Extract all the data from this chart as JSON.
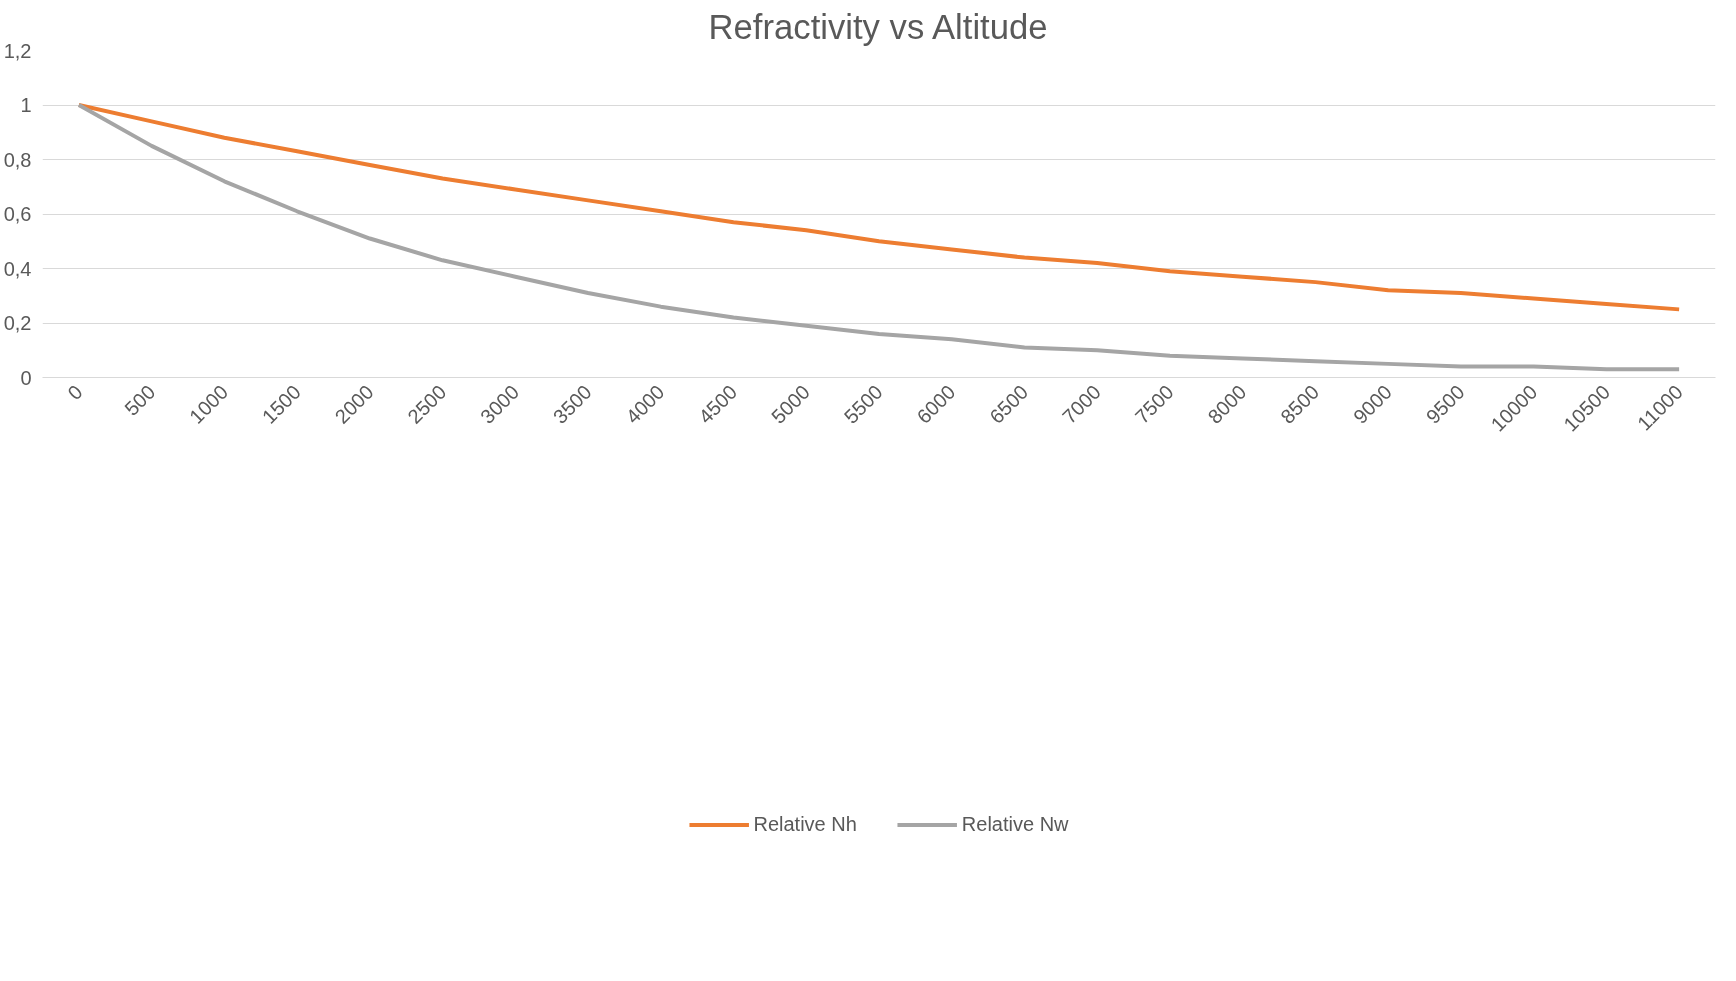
{
  "chart_data": {
    "type": "line",
    "title": "Refractivity vs Altitude",
    "categories": [
      "0",
      "500",
      "1000",
      "1500",
      "2000",
      "2500",
      "3000",
      "3500",
      "4000",
      "4500",
      "5000",
      "5500",
      "6000",
      "6500",
      "7000",
      "7500",
      "8000",
      "8500",
      "9000",
      "9500",
      "10000",
      "10500",
      "11000"
    ],
    "series": [
      {
        "name": "Relative Nh",
        "color": "#ed7d31",
        "values": [
          1,
          0.94,
          0.88,
          0.83,
          0.78,
          0.73,
          0.69,
          0.65,
          0.61,
          0.57,
          0.54,
          0.5,
          0.47,
          0.44,
          0.42,
          0.39,
          0.37,
          0.35,
          0.32,
          0.31,
          0.29,
          0.27,
          0.25
        ]
      },
      {
        "name": "Relative Nw",
        "color": "#a5a5a5",
        "values": [
          1,
          0.85,
          0.72,
          0.61,
          0.51,
          0.43,
          0.37,
          0.31,
          0.26,
          0.22,
          0.19,
          0.16,
          0.14,
          0.11,
          0.1,
          0.08,
          0.07,
          0.06,
          0.05,
          0.04,
          0.04,
          0.03,
          0.03
        ]
      }
    ],
    "ylim": [
      0,
      1.2
    ],
    "yticks": [
      0,
      {
        "value": 0.2,
        "label": "0,2"
      },
      {
        "value": 0.4,
        "label": "0,4"
      },
      {
        "value": 0.6,
        "label": "0,6"
      },
      {
        "value": 0.8,
        "label": "0,8"
      },
      1,
      {
        "value": 1.2,
        "label": "1,2"
      }
    ],
    "grid": "y",
    "legend": "bottom",
    "marker": "none",
    "line_style": "solid"
  }
}
